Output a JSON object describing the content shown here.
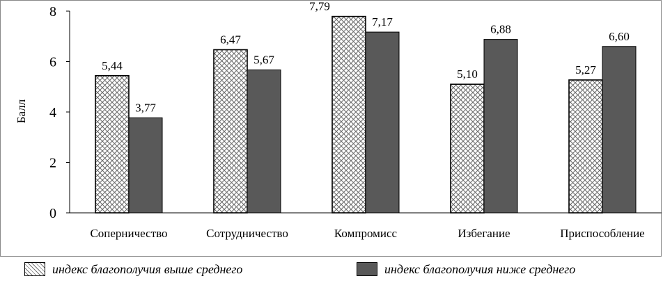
{
  "chart_data": {
    "type": "bar",
    "categories": [
      "Соперничество",
      "Сотрудничество",
      "Компромисс",
      "Избегание",
      "Приспособление"
    ],
    "series": [
      {
        "name": "индекс благополучия выше среднего",
        "values": [
          5.44,
          6.47,
          7.79,
          5.1,
          5.27
        ],
        "labels": [
          "5,44",
          "6,47",
          "7,79",
          "5,10",
          "5,27"
        ],
        "fill": "hatched",
        "color": "#ffffff"
      },
      {
        "name": "индекс благополучия ниже среднего",
        "values": [
          3.77,
          5.67,
          7.17,
          6.88,
          6.6
        ],
        "labels": [
          "3,77",
          "5,67",
          "7,17",
          "6,88",
          "6,60"
        ],
        "fill": "solid",
        "color": "#595959"
      }
    ],
    "ylabel": "Балл",
    "ylim": [
      0,
      8
    ],
    "yticks": [
      "0",
      "2",
      "4",
      "6",
      "8"
    ],
    "grid": false,
    "legend_position": "bottom"
  }
}
